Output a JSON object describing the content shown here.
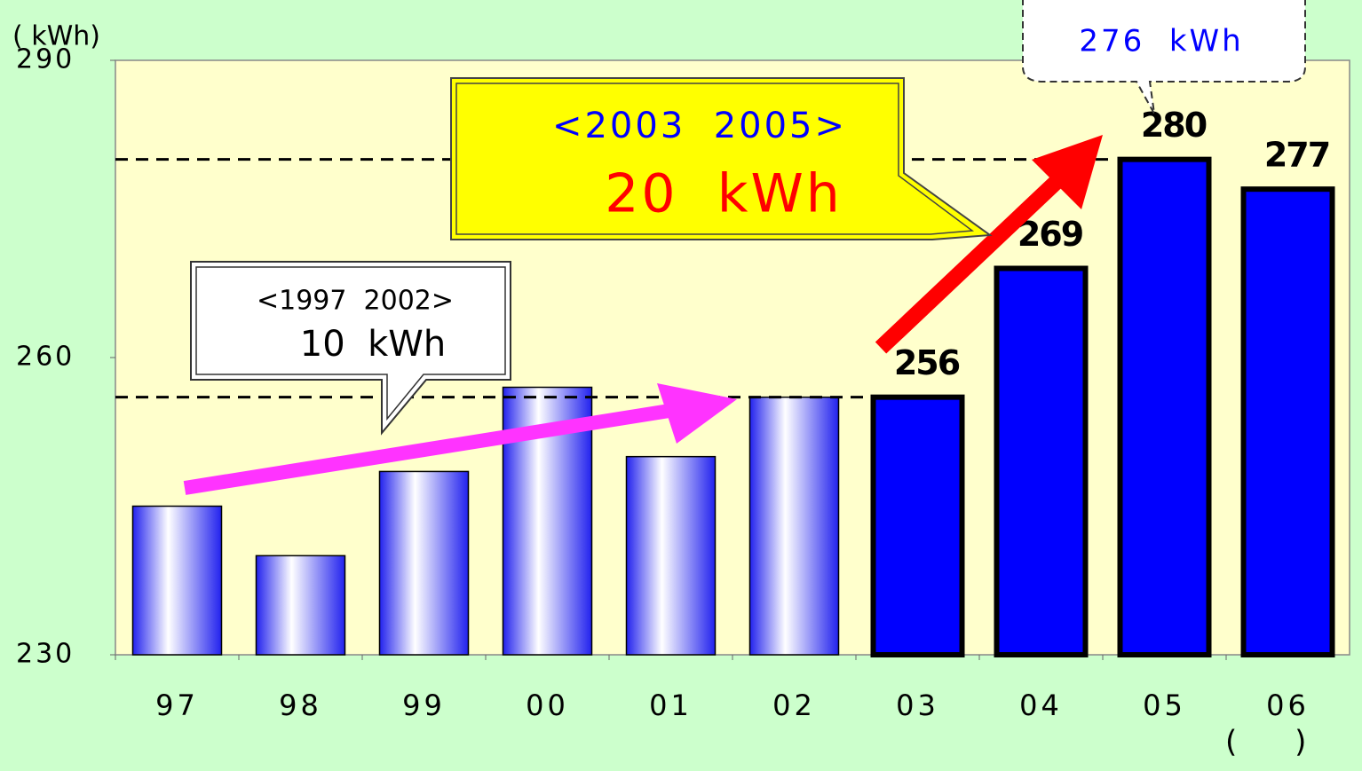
{
  "chart_data": {
    "type": "bar",
    "y_axis_label": "( kWh)",
    "x_axis_label": "(      )",
    "categories": [
      "97",
      "98",
      "99",
      "00",
      "01",
      "02",
      "03",
      "04",
      "05",
      "06"
    ],
    "values": [
      245,
      240,
      248.5,
      257,
      250,
      256,
      256,
      269,
      280,
      277
    ],
    "value_labels": [
      null,
      null,
      null,
      null,
      null,
      null,
      "256",
      "269",
      "280",
      "277"
    ],
    "gradient": [
      true,
      true,
      true,
      true,
      true,
      true,
      false,
      false,
      false,
      false
    ],
    "color": "#0000ff",
    "ylim": [
      230,
      290
    ],
    "yticks": [
      230,
      260,
      290
    ],
    "reference_lines": [
      256,
      280
    ],
    "annotations": [
      "<1997  2002>",
      "10  kWh",
      "<2003  2005>",
      "20  kWh",
      "276  kWh"
    ]
  }
}
